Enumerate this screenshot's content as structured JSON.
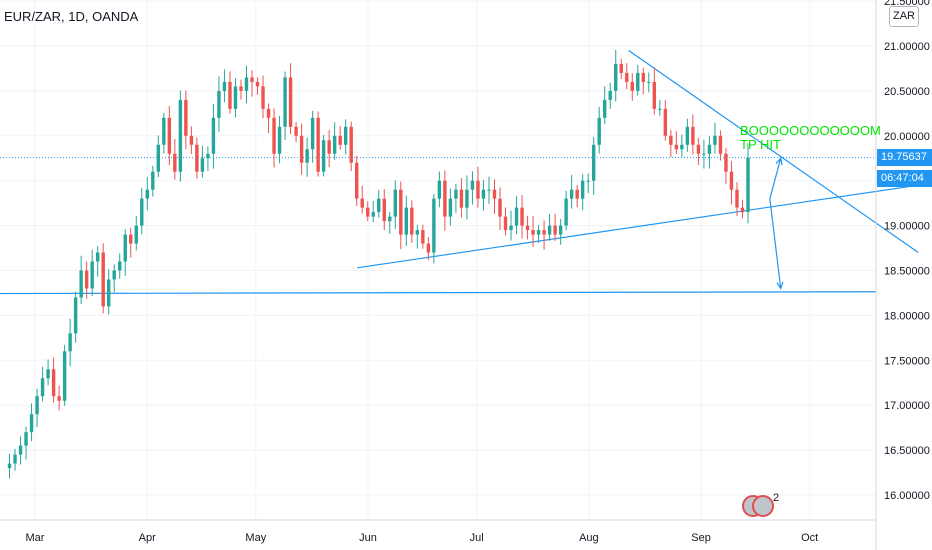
{
  "header": {
    "symbol": "EUR/ZAR, 1D, OANDA",
    "currency": "ZAR"
  },
  "annotation": {
    "line1": "BOOOOOOOOOOOOM",
    "line2": "TP HIT"
  },
  "price_tags": {
    "last": "19.75637",
    "countdown": "06:47:04"
  },
  "events": {
    "count": "2"
  },
  "colors": {
    "up": "#26a69a",
    "down": "#ef5350",
    "drawing": "#2196f3",
    "annotation": "#00e600"
  },
  "chart_data": {
    "type": "candlestick",
    "symbol": "EUR/ZAR",
    "interval": "1D",
    "source": "OANDA",
    "ylim": [
      15.75,
      21.5
    ],
    "y_ticks": [
      "21.50000",
      "21.00000",
      "20.50000",
      "20.00000",
      "19.50000",
      "19.00000",
      "18.50000",
      "18.00000",
      "17.50000",
      "17.00000",
      "16.50000",
      "16.00000"
    ],
    "x_ticks": [
      "Mar",
      "Apr",
      "May",
      "Jun",
      "Jul",
      "Aug",
      "Sep",
      "Oct"
    ],
    "last_price": 19.75637,
    "close_path": [
      16.3,
      16.35,
      16.45,
      16.55,
      16.7,
      16.9,
      17.1,
      17.3,
      17.4,
      17.1,
      17.05,
      17.6,
      17.8,
      18.2,
      18.5,
      18.3,
      18.6,
      18.7,
      18.1,
      18.4,
      18.5,
      18.6,
      18.9,
      18.8,
      19.0,
      19.3,
      19.4,
      19.6,
      19.9,
      20.2,
      19.8,
      19.6,
      20.4,
      20.0,
      19.9,
      19.6,
      19.75,
      19.8,
      20.2,
      20.5,
      20.6,
      20.3,
      20.55,
      20.5,
      20.65,
      20.6,
      20.55,
      20.3,
      20.2,
      19.8,
      20.1,
      20.65,
      20.1,
      20.0,
      19.7,
      19.85,
      20.2,
      19.6,
      19.95,
      19.8,
      20.0,
      19.9,
      20.1,
      19.7,
      19.3,
      19.2,
      19.1,
      19.15,
      19.3,
      19.05,
      19.1,
      19.4,
      18.9,
      19.2,
      18.9,
      18.95,
      18.8,
      18.7,
      19.3,
      19.5,
      19.1,
      19.3,
      19.4,
      19.2,
      19.4,
      19.5,
      19.3,
      19.4,
      19.4,
      19.3,
      19.1,
      18.95,
      19.0,
      19.2,
      19.0,
      18.95,
      18.9,
      18.95,
      18.9,
      19.0,
      18.9,
      19.0,
      19.3,
      19.4,
      19.3,
      19.5,
      19.5,
      19.9,
      20.2,
      20.4,
      20.5,
      20.8,
      20.7,
      20.6,
      20.5,
      20.7,
      20.6,
      20.6,
      20.3,
      20.3,
      20.0,
      19.9,
      19.85,
      19.9,
      20.1,
      19.9,
      19.8,
      19.8,
      19.9,
      20.0,
      19.8,
      19.6,
      19.4,
      19.2,
      19.15,
      19.75637
    ],
    "drawings": [
      {
        "type": "trend_line",
        "points": [
          [
            "2020-05-29",
            18.53
          ],
          [
            "2020-10-31",
            19.45
          ]
        ]
      },
      {
        "type": "trend_line",
        "points": [
          [
            "2020-08-12",
            20.95
          ],
          [
            "2020-10-31",
            18.7
          ]
        ]
      },
      {
        "type": "horizontal_line",
        "price": 18.25
      },
      {
        "type": "arrow",
        "from": [
          "2020-09-20",
          19.3
        ],
        "to": [
          "2020-09-23",
          18.3
        ]
      },
      {
        "type": "arrow",
        "from": [
          "2020-09-20",
          19.3
        ],
        "to": [
          "2020-09-23",
          19.75
        ]
      }
    ]
  }
}
